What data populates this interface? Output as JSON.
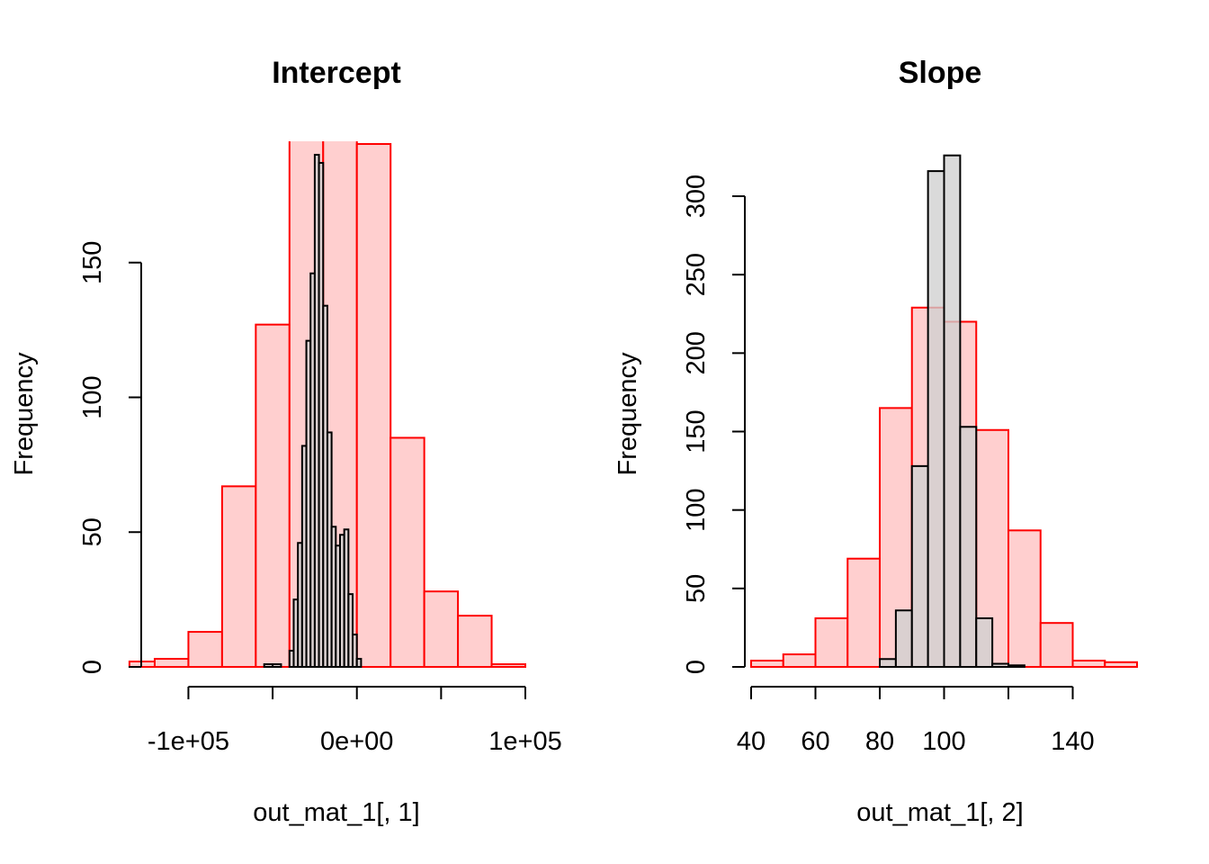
{
  "chart_data": [
    {
      "type": "bar",
      "title": "Intercept",
      "xlabel": "out_mat_1[, 1]",
      "ylabel": "Frequency",
      "xlim": [
        -128000,
        100000
      ],
      "ylim": [
        0,
        195
      ],
      "x_ticks": [
        -100000,
        -50000,
        0,
        50000,
        100000
      ],
      "x_tick_labels": [
        "-1e+05",
        "",
        "0e+00",
        "",
        "1e+05"
      ],
      "y_ticks": [
        0,
        50,
        100,
        150
      ],
      "y_tick_labels": [
        "0",
        "50",
        "100",
        "150"
      ],
      "series": [
        {
          "bin_edges": [
            -135000,
            -120000,
            -100000,
            -80000,
            -60000,
            -40000,
            -20000,
            0,
            20000,
            40000,
            60000,
            80000,
            100000
          ],
          "counts": [
            2,
            3,
            13,
            67,
            127,
            215,
            210,
            194,
            85,
            28,
            19,
            1
          ],
          "color": "#ff0000",
          "fill": "#ffcccc"
        },
        {
          "bin_edges": [
            -55000,
            -50000,
            -45000,
            -40000,
            -37500,
            -35000,
            -32500,
            -30000,
            -27500,
            -25000,
            -22500,
            -20000,
            -17500,
            -15000,
            -12500,
            -10000,
            -7500,
            -5000,
            -2500,
            0,
            2500,
            5000,
            7500,
            10000,
            12500,
            15000
          ],
          "counts": [
            1,
            1,
            0,
            6,
            25,
            46,
            82,
            121,
            146,
            190,
            187,
            134,
            87,
            52,
            45,
            49,
            51,
            27,
            12,
            3,
            0,
            0,
            0,
            0,
            0
          ],
          "color": "#000000",
          "fill": "#cfcfcf"
        }
      ]
    },
    {
      "type": "bar",
      "title": "Slope",
      "xlabel": "out_mat_1[, 2]",
      "ylabel": "Frequency",
      "xlim": [
        40,
        160
      ],
      "ylim": [
        0,
        335
      ],
      "x_ticks": [
        40,
        60,
        80,
        100,
        120,
        140
      ],
      "x_tick_labels": [
        "40",
        "60",
        "80",
        "100",
        "",
        "140"
      ],
      "y_ticks": [
        0,
        50,
        100,
        150,
        200,
        250,
        300
      ],
      "y_tick_labels": [
        "0",
        "50",
        "100",
        "150",
        "200",
        "250",
        "300"
      ],
      "series": [
        {
          "bin_edges": [
            40,
            50,
            60,
            70,
            80,
            90,
            100,
            110,
            120,
            130,
            140,
            150,
            160
          ],
          "counts": [
            4,
            8,
            31,
            69,
            165,
            229,
            220,
            151,
            87,
            28,
            4,
            3
          ],
          "color": "#ff0000",
          "fill": "#ffcccc"
        },
        {
          "bin_edges": [
            80,
            85,
            90,
            95,
            100,
            105,
            110,
            115,
            120,
            125
          ],
          "counts": [
            5,
            36,
            128,
            316,
            326,
            153,
            31,
            2,
            1
          ],
          "color": "#000000",
          "fill": "#cfcfcf"
        }
      ]
    }
  ]
}
